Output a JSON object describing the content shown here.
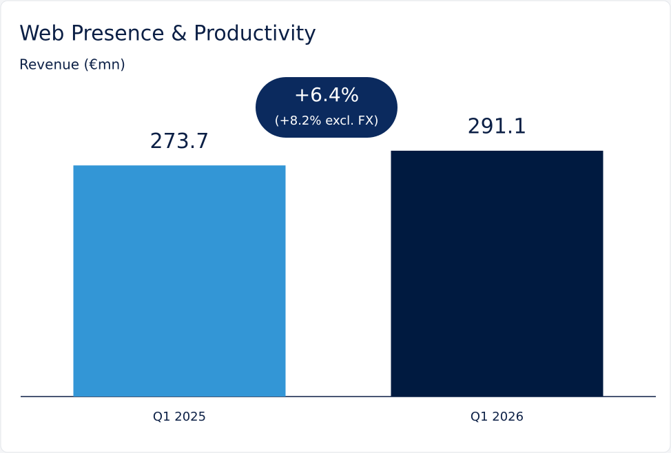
{
  "chart_data": {
    "type": "bar",
    "title": "Web Presence & Productivity",
    "subtitle": "Revenue (€mn)",
    "categories": [
      "Q1 2025",
      "Q1 2026"
    ],
    "values": [
      273.7,
      291.1
    ],
    "colors": [
      "#3396d6",
      "#001a40"
    ],
    "ylim": [
      0,
      300
    ],
    "annotation": {
      "headline": "+6.4%",
      "detail": "(+8.2% excl. FX)"
    }
  }
}
